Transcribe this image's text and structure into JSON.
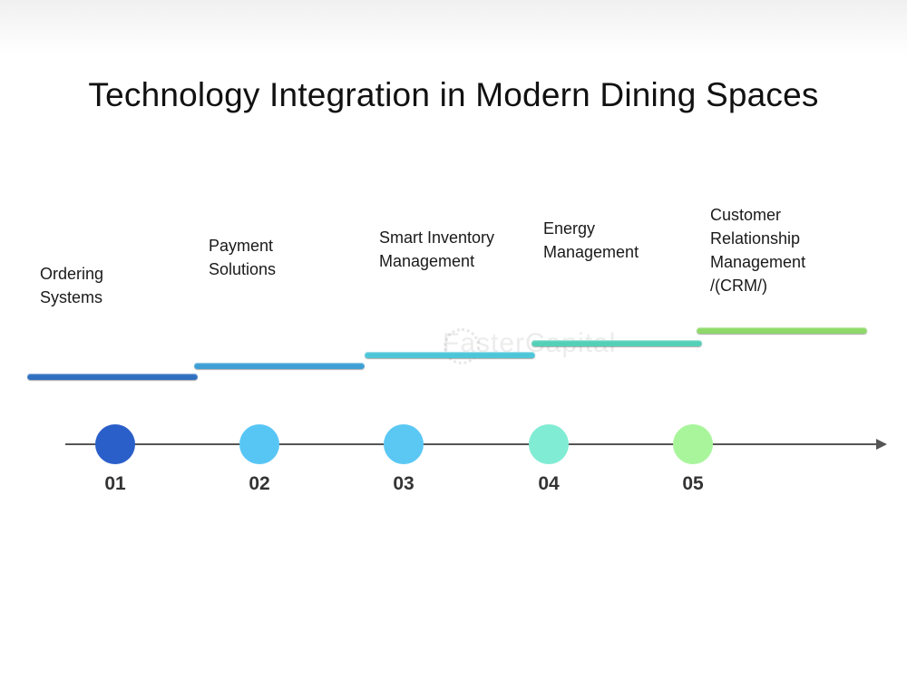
{
  "title": "Technology Integration in Modern Dining Spaces",
  "watermark": "FasterCapital",
  "stages": [
    {
      "label": "Ordering\nSystems",
      "number": "01",
      "bar_color": "#2f6fc0",
      "dot_color": "#2a5fc9"
    },
    {
      "label": "Payment\nSolutions",
      "number": "02",
      "bar_color": "#3e9fd6",
      "dot_color": "#58c6f5"
    },
    {
      "label": "Smart Inventory\nManagement",
      "number": "03",
      "bar_color": "#4cc6d8",
      "dot_color": "#5bc8f3"
    },
    {
      "label": "Energy\nManagement",
      "number": "04",
      "bar_color": "#55d0b8",
      "dot_color": "#80ecd3"
    },
    {
      "label": "Customer\nRelationship\nManagement\n/(CRM/)",
      "number": "05",
      "bar_color": "#8ed96a",
      "dot_color": "#a9f59c"
    }
  ]
}
